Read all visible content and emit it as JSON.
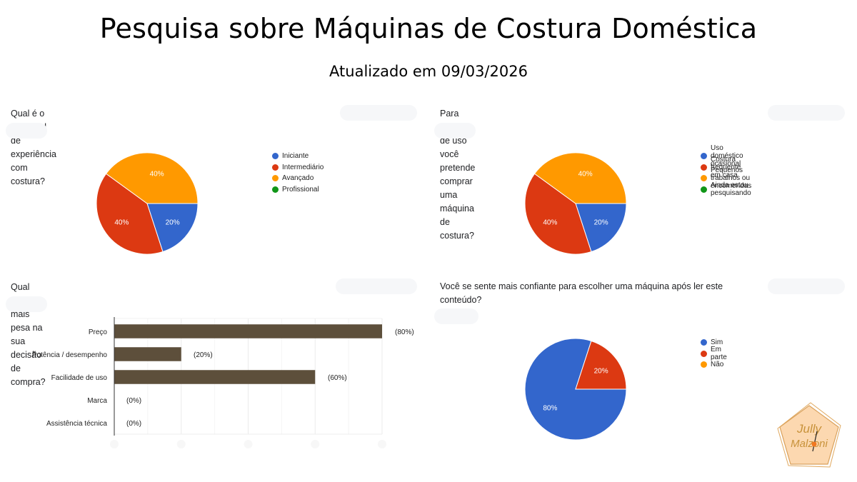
{
  "header": {
    "title": "Pesquisa sobre Máquinas de Costura Doméstica",
    "subtitle": "Atualizado em 09/03/2026"
  },
  "colors": {
    "blue": "#3366cc",
    "red": "#dc3912",
    "orange": "#ff9900",
    "green": "#109618",
    "bar": "#5d4f3b"
  },
  "logo": {
    "text_line1": "Jully",
    "text_line2": "Malzoni"
  },
  "chart_data": [
    {
      "type": "pie",
      "title": "Qual é o seu nível de experiência com costura?",
      "categories": [
        "Iniciante",
        "Intermediário",
        "Avançado",
        "Profissional"
      ],
      "values": [
        20,
        40,
        40,
        0
      ],
      "labels": [
        "20%",
        "40%",
        "40%",
        ""
      ],
      "colors": [
        "#3366cc",
        "#dc3912",
        "#ff9900",
        "#109618"
      ],
      "legend_position": "right"
    },
    {
      "type": "pie",
      "title": "Para qual tipo de uso você pretende comprar uma máquina de costura?",
      "categories": [
        "Uso doméstico ocasional",
        "Costura frequente em casa",
        "Pequenos trabalhos ou encomendas",
        "Ainda estou pesquisando"
      ],
      "values": [
        20,
        40,
        40,
        0
      ],
      "labels": [
        "20%",
        "40%",
        "40%",
        ""
      ],
      "colors": [
        "#3366cc",
        "#dc3912",
        "#ff9900",
        "#109618"
      ],
      "legend_position": "right"
    },
    {
      "type": "bar",
      "orientation": "horizontal",
      "title": "Qual fator mais pesa na sua decisão de compra?",
      "categories": [
        "Preço",
        "Potência / desempenho",
        "Facilidade de uso",
        "Marca",
        "Assistência técnica"
      ],
      "values": [
        80,
        20,
        60,
        0,
        0
      ],
      "labels": [
        "(80%)",
        "(20%)",
        "(60%)",
        "(0%)",
        "(0%)"
      ],
      "xlim": [
        0,
        80
      ],
      "grid": true,
      "color": "#5d4f3b"
    },
    {
      "type": "pie",
      "title": "Você se sente mais confiante para escolher uma máquina após ler este conteúdo?",
      "categories": [
        "Sim",
        "Em parte",
        "Não"
      ],
      "values": [
        80,
        20,
        0
      ],
      "labels": [
        "80%",
        "20%",
        ""
      ],
      "colors": [
        "#3366cc",
        "#dc3912",
        "#ff9900"
      ],
      "legend_position": "right"
    }
  ]
}
